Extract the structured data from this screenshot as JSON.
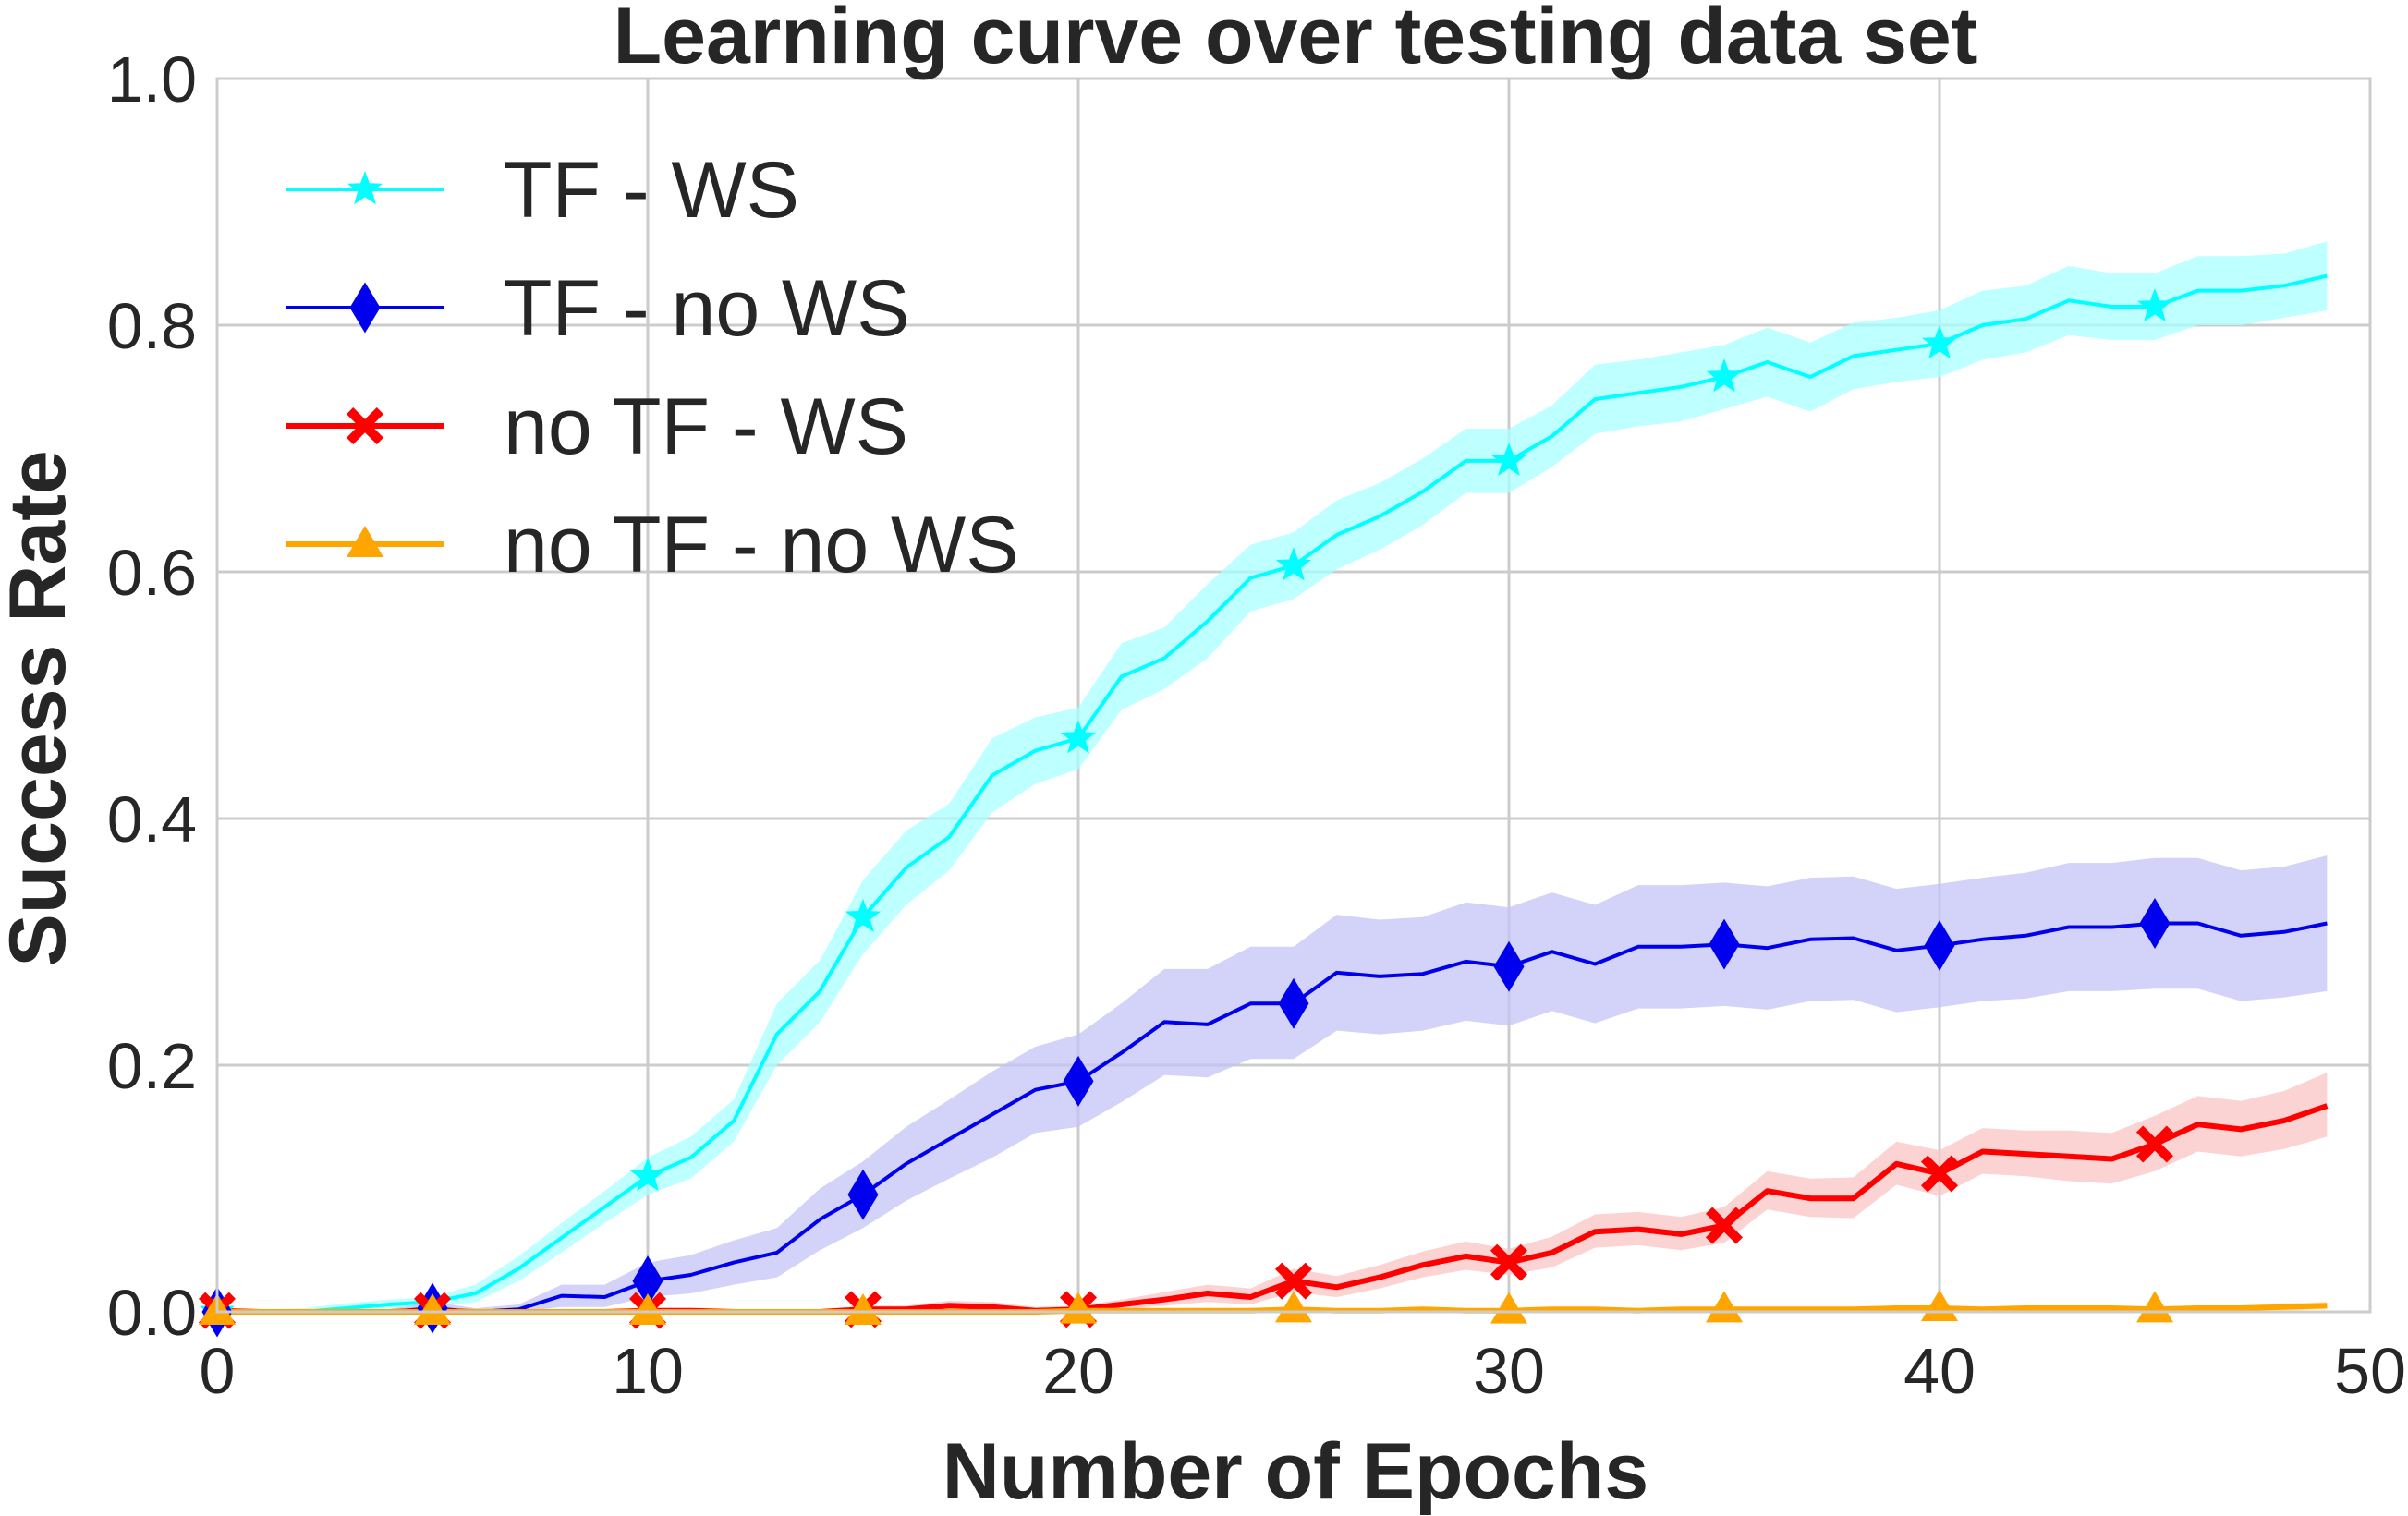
{
  "chart_data": {
    "type": "line",
    "title": "Learning curve over testing data set",
    "xlabel": "Number of Epochs",
    "ylabel": "Success Rate",
    "xlim": [
      0,
      50
    ],
    "ylim": [
      0,
      1.0
    ],
    "xticks": [
      0,
      10,
      20,
      30,
      40,
      50
    ],
    "xtick_labels": [
      "0",
      "10",
      "20",
      "30",
      "40",
      "50"
    ],
    "yticks": [
      0.0,
      0.2,
      0.4,
      0.6,
      0.8,
      1.0
    ],
    "ytick_labels": [
      "0.0",
      "0.2",
      "0.4",
      "0.6",
      "0.8",
      "1.0"
    ],
    "grid": true,
    "legend_position": "upper-left",
    "marker_every": 5,
    "series": [
      {
        "name": "TF - WS",
        "color": "#00ffff",
        "band_color": "#a8ffff",
        "marker": "star",
        "x": [
          0,
          1,
          2,
          3,
          4,
          5,
          6,
          7,
          8,
          9,
          10,
          11,
          12,
          13,
          14,
          15,
          16,
          17,
          18,
          19,
          20,
          21,
          22,
          23,
          24,
          25,
          26,
          27,
          28,
          29,
          30,
          31,
          32,
          33,
          34,
          35,
          36,
          37,
          38,
          39,
          40,
          41,
          42,
          43,
          44,
          45,
          46,
          47,
          48,
          49
        ],
        "y": [
          0.0,
          0.0,
          0.0,
          0.003,
          0.006,
          0.008,
          0.015,
          0.035,
          0.06,
          0.085,
          0.11,
          0.125,
          0.155,
          0.225,
          0.26,
          0.32,
          0.36,
          0.385,
          0.435,
          0.455,
          0.465,
          0.515,
          0.53,
          0.56,
          0.595,
          0.605,
          0.63,
          0.645,
          0.665,
          0.69,
          0.69,
          0.71,
          0.74,
          0.745,
          0.75,
          0.758,
          0.77,
          0.758,
          0.775,
          0.78,
          0.785,
          0.8,
          0.805,
          0.82,
          0.815,
          0.815,
          0.828,
          0.828,
          0.832,
          0.84
        ],
        "lower": [
          0.0,
          0.0,
          0.0,
          0.0,
          0.002,
          0.004,
          0.008,
          0.025,
          0.048,
          0.072,
          0.095,
          0.108,
          0.138,
          0.2,
          0.235,
          0.29,
          0.33,
          0.358,
          0.405,
          0.428,
          0.44,
          0.488,
          0.505,
          0.53,
          0.568,
          0.578,
          0.602,
          0.618,
          0.638,
          0.664,
          0.664,
          0.685,
          0.712,
          0.718,
          0.722,
          0.732,
          0.742,
          0.73,
          0.748,
          0.754,
          0.758,
          0.772,
          0.778,
          0.792,
          0.788,
          0.788,
          0.8,
          0.8,
          0.806,
          0.812
        ],
        "upper": [
          0.002,
          0.002,
          0.003,
          0.007,
          0.01,
          0.012,
          0.022,
          0.045,
          0.072,
          0.098,
          0.125,
          0.142,
          0.172,
          0.25,
          0.285,
          0.35,
          0.39,
          0.412,
          0.465,
          0.482,
          0.49,
          0.542,
          0.555,
          0.59,
          0.622,
          0.632,
          0.658,
          0.672,
          0.692,
          0.716,
          0.716,
          0.735,
          0.768,
          0.772,
          0.778,
          0.784,
          0.798,
          0.786,
          0.802,
          0.806,
          0.812,
          0.828,
          0.832,
          0.848,
          0.842,
          0.842,
          0.856,
          0.856,
          0.858,
          0.868
        ]
      },
      {
        "name": "TF - no WS",
        "color": "#0000ee",
        "band_color": "#c4c4f7",
        "marker": "diamond",
        "x": [
          0,
          1,
          2,
          3,
          4,
          5,
          6,
          7,
          8,
          9,
          10,
          11,
          12,
          13,
          14,
          15,
          16,
          17,
          18,
          19,
          20,
          21,
          22,
          23,
          24,
          25,
          26,
          27,
          28,
          29,
          30,
          31,
          32,
          33,
          34,
          35,
          36,
          37,
          38,
          39,
          40,
          41,
          42,
          43,
          44,
          45,
          46,
          47,
          48,
          49
        ],
        "y": [
          0.0,
          0.0,
          0.0,
          0.0,
          0.0,
          0.003,
          0.0,
          0.002,
          0.013,
          0.012,
          0.025,
          0.03,
          0.04,
          0.048,
          0.075,
          0.095,
          0.12,
          0.14,
          0.16,
          0.18,
          0.187,
          0.21,
          0.235,
          0.233,
          0.25,
          0.25,
          0.275,
          0.272,
          0.274,
          0.284,
          0.28,
          0.292,
          0.282,
          0.296,
          0.296,
          0.298,
          0.295,
          0.302,
          0.303,
          0.293,
          0.297,
          0.302,
          0.305,
          0.312,
          0.312,
          0.315,
          0.315,
          0.305,
          0.308,
          0.315
        ],
        "lower": [
          0.0,
          0.0,
          0.0,
          0.0,
          0.0,
          0.0,
          0.0,
          0.0,
          0.004,
          0.004,
          0.012,
          0.015,
          0.022,
          0.028,
          0.05,
          0.068,
          0.09,
          0.108,
          0.125,
          0.145,
          0.15,
          0.17,
          0.192,
          0.19,
          0.205,
          0.205,
          0.228,
          0.225,
          0.228,
          0.236,
          0.232,
          0.244,
          0.234,
          0.246,
          0.246,
          0.248,
          0.245,
          0.252,
          0.253,
          0.243,
          0.247,
          0.252,
          0.254,
          0.26,
          0.26,
          0.262,
          0.262,
          0.252,
          0.255,
          0.26
        ],
        "upper": [
          0.003,
          0.002,
          0.002,
          0.002,
          0.002,
          0.008,
          0.003,
          0.006,
          0.022,
          0.022,
          0.04,
          0.046,
          0.058,
          0.068,
          0.1,
          0.122,
          0.15,
          0.172,
          0.195,
          0.215,
          0.225,
          0.25,
          0.278,
          0.278,
          0.296,
          0.296,
          0.322,
          0.318,
          0.32,
          0.332,
          0.328,
          0.34,
          0.33,
          0.346,
          0.346,
          0.348,
          0.345,
          0.352,
          0.353,
          0.343,
          0.347,
          0.352,
          0.356,
          0.364,
          0.364,
          0.368,
          0.368,
          0.358,
          0.361,
          0.37
        ]
      },
      {
        "name": "no TF - WS",
        "color": "#ff0000",
        "band_color": "#fbc4c4",
        "marker": "x",
        "x": [
          0,
          1,
          2,
          3,
          4,
          5,
          6,
          7,
          8,
          9,
          10,
          11,
          12,
          13,
          14,
          15,
          16,
          17,
          18,
          19,
          20,
          21,
          22,
          23,
          24,
          25,
          26,
          27,
          28,
          29,
          30,
          31,
          32,
          33,
          34,
          35,
          36,
          37,
          38,
          39,
          40,
          41,
          42,
          43,
          44,
          45,
          46,
          47,
          48,
          49
        ],
        "y": [
          0.001,
          0.0,
          0.0,
          0.0,
          0.0,
          0.001,
          0.0,
          0.0,
          0.0,
          0.0,
          0.001,
          0.001,
          0.0,
          0.0,
          0.0,
          0.002,
          0.002,
          0.005,
          0.004,
          0.001,
          0.002,
          0.006,
          0.01,
          0.015,
          0.012,
          0.025,
          0.02,
          0.028,
          0.038,
          0.045,
          0.04,
          0.048,
          0.065,
          0.067,
          0.063,
          0.07,
          0.098,
          0.092,
          0.092,
          0.12,
          0.112,
          0.13,
          0.128,
          0.126,
          0.124,
          0.136,
          0.152,
          0.148,
          0.155,
          0.167
        ],
        "lower": [
          0.0,
          0.0,
          0.0,
          0.0,
          0.0,
          0.0,
          0.0,
          0.0,
          0.0,
          0.0,
          0.0,
          0.0,
          0.0,
          0.0,
          0.0,
          0.0,
          0.0,
          0.002,
          0.001,
          0.0,
          0.0,
          0.002,
          0.005,
          0.008,
          0.006,
          0.016,
          0.012,
          0.019,
          0.028,
          0.034,
          0.03,
          0.036,
          0.052,
          0.054,
          0.05,
          0.056,
          0.083,
          0.077,
          0.076,
          0.103,
          0.094,
          0.112,
          0.11,
          0.106,
          0.104,
          0.114,
          0.13,
          0.126,
          0.132,
          0.142
        ],
        "upper": [
          0.003,
          0.002,
          0.002,
          0.002,
          0.002,
          0.003,
          0.002,
          0.002,
          0.002,
          0.002,
          0.003,
          0.003,
          0.002,
          0.002,
          0.002,
          0.005,
          0.005,
          0.009,
          0.008,
          0.004,
          0.005,
          0.01,
          0.016,
          0.022,
          0.019,
          0.035,
          0.029,
          0.038,
          0.049,
          0.057,
          0.051,
          0.061,
          0.079,
          0.081,
          0.077,
          0.085,
          0.114,
          0.108,
          0.109,
          0.138,
          0.131,
          0.149,
          0.147,
          0.147,
          0.145,
          0.159,
          0.175,
          0.171,
          0.179,
          0.194
        ]
      },
      {
        "name": "no TF - no WS",
        "color": "#ffa500",
        "band_color": "#ffe2a8",
        "marker": "triangle",
        "x": [
          0,
          1,
          2,
          3,
          4,
          5,
          6,
          7,
          8,
          9,
          10,
          11,
          12,
          13,
          14,
          15,
          16,
          17,
          18,
          19,
          20,
          21,
          22,
          23,
          24,
          25,
          26,
          27,
          28,
          29,
          30,
          31,
          32,
          33,
          34,
          35,
          36,
          37,
          38,
          39,
          40,
          41,
          42,
          43,
          44,
          45,
          46,
          47,
          48,
          49
        ],
        "y": [
          0.0,
          0.0,
          0.0,
          0.0,
          0.0,
          0.0,
          0.0,
          0.0,
          0.0,
          0.0,
          0.0,
          0.0,
          0.0,
          0.0,
          0.0,
          0.0,
          0.0,
          0.0,
          0.0,
          0.0,
          0.001,
          0.001,
          0.001,
          0.001,
          0.001,
          0.002,
          0.001,
          0.001,
          0.002,
          0.001,
          0.001,
          0.002,
          0.002,
          0.001,
          0.002,
          0.002,
          0.002,
          0.002,
          0.002,
          0.003,
          0.003,
          0.002,
          0.003,
          0.003,
          0.003,
          0.002,
          0.003,
          0.003,
          0.004,
          0.005
        ],
        "lower": [
          0.0,
          0.0,
          0.0,
          0.0,
          0.0,
          0.0,
          0.0,
          0.0,
          0.0,
          0.0,
          0.0,
          0.0,
          0.0,
          0.0,
          0.0,
          0.0,
          0.0,
          0.0,
          0.0,
          0.0,
          0.0,
          0.0,
          0.0,
          0.0,
          0.0,
          0.0,
          0.0,
          0.0,
          0.0,
          0.0,
          0.0,
          0.0,
          0.0,
          0.0,
          0.0,
          0.0,
          0.0,
          0.0,
          0.0,
          0.0,
          0.0,
          0.0,
          0.0,
          0.0,
          0.0,
          0.0,
          0.0,
          0.0,
          0.001,
          0.002
        ],
        "upper": [
          0.001,
          0.001,
          0.001,
          0.001,
          0.001,
          0.001,
          0.001,
          0.001,
          0.001,
          0.001,
          0.001,
          0.001,
          0.001,
          0.001,
          0.001,
          0.001,
          0.001,
          0.001,
          0.001,
          0.001,
          0.002,
          0.002,
          0.002,
          0.002,
          0.002,
          0.004,
          0.002,
          0.002,
          0.004,
          0.002,
          0.002,
          0.004,
          0.004,
          0.002,
          0.004,
          0.004,
          0.004,
          0.004,
          0.004,
          0.005,
          0.005,
          0.004,
          0.005,
          0.005,
          0.005,
          0.004,
          0.005,
          0.005,
          0.007,
          0.008
        ]
      }
    ]
  }
}
